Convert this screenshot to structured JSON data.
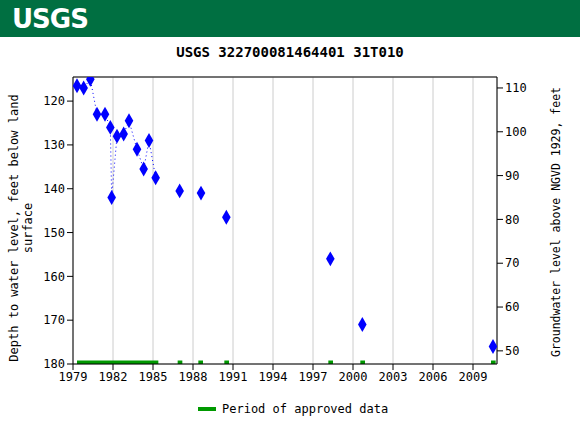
{
  "header": {
    "logo": "USGS"
  },
  "chart_data": {
    "type": "scatter",
    "title": "USGS 322700081464401 31T010",
    "x_label": "",
    "y_label": "Depth to water level, feet below land surface",
    "y2_label": "Groundwater level above NGVD 1929, feet",
    "xlim": [
      1979,
      2010.8
    ],
    "xticks": [
      1979,
      1982,
      1985,
      1988,
      1991,
      1994,
      1997,
      2000,
      2003,
      2006,
      2009
    ],
    "ylim": [
      114.5,
      180
    ],
    "yticks": [
      120,
      130,
      140,
      150,
      160,
      170,
      180
    ],
    "y2lim": [
      47,
      112.5
    ],
    "y2ticks": [
      50,
      60,
      70,
      80,
      90,
      100,
      110
    ],
    "grid": true,
    "series": [
      {
        "type": "line",
        "line_style": "dotted",
        "marker": "diamond",
        "color": "#0000ff",
        "x": [
          1979.3,
          1979.8,
          1980.3,
          1980.8,
          1981.4,
          1981.8,
          1981.9,
          1982.3,
          1982.8,
          1983.2,
          1983.8,
          1984.3,
          1984.7,
          1985.2
        ],
        "values": [
          116.5,
          117,
          115,
          123,
          123,
          126,
          142,
          128,
          127.5,
          124.5,
          131,
          135.5,
          129,
          137.5
        ]
      },
      {
        "type": "scatter",
        "marker": "diamond",
        "color": "#0000ff",
        "x": [
          1987.0,
          1988.6,
          1990.5,
          1998.3,
          2000.7,
          2010.5
        ],
        "values": [
          140.5,
          141,
          146.5,
          156,
          171,
          176
        ]
      }
    ],
    "approved_periods": {
      "name": "Period of approved data",
      "color": "#009900",
      "ranges": [
        [
          1979.3,
          1985.4
        ],
        [
          1986.85,
          1987.2
        ],
        [
          1988.4,
          1988.75
        ],
        [
          1990.35,
          1990.7
        ],
        [
          1998.15,
          1998.5
        ],
        [
          2000.55,
          2000.9
        ],
        [
          2010.35,
          2010.7
        ]
      ]
    }
  }
}
